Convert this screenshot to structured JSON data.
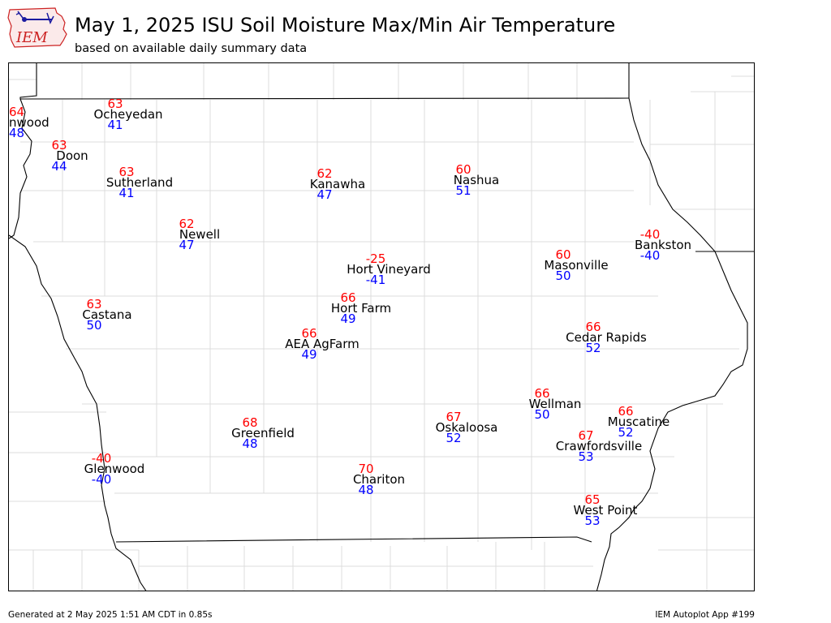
{
  "header": {
    "title": "May 1, 2025 ISU Soil Moisture Max/Min Air Temperature",
    "subtitle": "based on available daily summary data",
    "logo_text": "IEM"
  },
  "footer": {
    "generated": "Generated at 2 May 2025 1:51 AM CDT in 0.85s",
    "app": "IEM Autoplot App #199"
  },
  "colors": {
    "max_temp": "#ff0000",
    "min_temp": "#0000ff",
    "station_name": "#000000",
    "county_lines": "#dddddd",
    "state_lines": "#000000",
    "logo_red": "#cc2222",
    "logo_blue": "#1a1aa0"
  },
  "stations": [
    {
      "name": "Inwood",
      "display_name": "nwood",
      "max": "64",
      "min": "48"
    },
    {
      "name": "Ocheyedan",
      "display_name": "Ocheyedan",
      "max": "63",
      "min": "41"
    },
    {
      "name": "Doon",
      "display_name": "Doon",
      "max": "63",
      "min": "44"
    },
    {
      "name": "Sutherland",
      "display_name": "Sutherland",
      "max": "63",
      "min": "41"
    },
    {
      "name": "Kanawha",
      "display_name": "Kanawha",
      "max": "62",
      "min": "47"
    },
    {
      "name": "Nashua",
      "display_name": "Nashua",
      "max": "60",
      "min": "51"
    },
    {
      "name": "Newell",
      "display_name": "Newell",
      "max": "62",
      "min": "47"
    },
    {
      "name": "Bankston",
      "display_name": "Bankston",
      "max": "-40",
      "min": "-40"
    },
    {
      "name": "Hort Vineyard",
      "display_name": "Hort Vineyard",
      "max": "-25",
      "min": "-41"
    },
    {
      "name": "Masonville",
      "display_name": "Masonville",
      "max": "60",
      "min": "50"
    },
    {
      "name": "Castana",
      "display_name": "Castana",
      "max": "63",
      "min": "50"
    },
    {
      "name": "Hort Farm",
      "display_name": "Hort Farm",
      "max": "66",
      "min": "49"
    },
    {
      "name": "AEA AgFarm",
      "display_name": "AEA AgFarm",
      "max": "66",
      "min": "49"
    },
    {
      "name": "Cedar Rapids",
      "display_name": "Cedar Rapids",
      "max": "66",
      "min": "52"
    },
    {
      "name": "Wellman",
      "display_name": "Wellman",
      "max": "66",
      "min": "50"
    },
    {
      "name": "Muscatine",
      "display_name": "Muscatine",
      "max": "66",
      "min": "52"
    },
    {
      "name": "Oskaloosa",
      "display_name": "Oskaloosa",
      "max": "67",
      "min": "52"
    },
    {
      "name": "Greenfield",
      "display_name": "Greenfield",
      "max": "68",
      "min": "48"
    },
    {
      "name": "Crawfordsville",
      "display_name": "Crawfordsville",
      "max": "67",
      "min": "53"
    },
    {
      "name": "Glenwood",
      "display_name": "Glenwood",
      "max": "-40",
      "min": "-40"
    },
    {
      "name": "Chariton",
      "display_name": "Chariton",
      "max": "70",
      "min": "48"
    },
    {
      "name": "West Point",
      "display_name": "West Point",
      "max": "65",
      "min": "53"
    }
  ]
}
